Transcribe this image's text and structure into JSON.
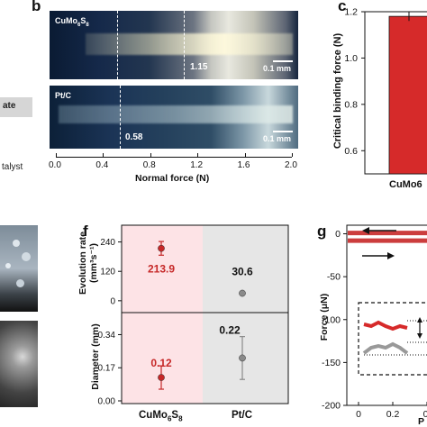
{
  "panels": {
    "b": {
      "letter": "b"
    },
    "c": {
      "letter": "c"
    },
    "f": {
      "letter": "f"
    },
    "g": {
      "letter": "g"
    }
  },
  "left_fragments": {
    "line1": "ate",
    "line2": "talyst"
  },
  "micrograph_top": {
    "label_main": "CuMo",
    "label_sub1": "6",
    "label_mid": "S",
    "label_sub2": "8",
    "value": "1.15",
    "scale": "0.1 mm"
  },
  "micrograph_bottom": {
    "label": "Pt/C",
    "value": "0.58",
    "scale": "0.1 mm"
  },
  "chart_data": [
    {
      "type": "table",
      "panel": "b",
      "xlabel": "Normal force (N)",
      "xlim": [
        0.0,
        2.0
      ],
      "xticks": [
        "0.0",
        "0.4",
        "0.8",
        "1.2",
        "1.6",
        "2.0"
      ],
      "markers": [
        {
          "sample": "CuMo6S8",
          "critical_force": 1.15
        },
        {
          "sample": "Pt/C",
          "critical_force": 0.58
        }
      ]
    },
    {
      "type": "bar",
      "panel": "c",
      "ylabel": "Critical binding force (N)",
      "ylim": [
        0.5,
        1.2
      ],
      "yticks": [
        "0.6",
        "0.8",
        "1.0",
        "1.2"
      ],
      "categories": [
        "CuMo6"
      ],
      "values": [
        1.18
      ],
      "error": [
        0.02
      ],
      "bar_color": "#d62a2a"
    },
    {
      "type": "scatter",
      "panel": "f",
      "categories": [
        "CuMo6S8",
        "Pt/C"
      ],
      "xlabel_main": "CuMo",
      "xlabel_sub1": "6",
      "xlabel_mid": "S",
      "xlabel_sub2": "8",
      "xlabel_right": "Pt/C",
      "top": {
        "ylabel_line1": "Evolution rate",
        "ylabel_line2": "(mm³s⁻¹)",
        "ylim": [
          -30,
          290
        ],
        "yticks": [
          "0",
          "120",
          "240"
        ],
        "values": [
          213.9,
          30.6
        ],
        "errors": [
          28,
          4
        ],
        "labels": [
          "213.9",
          "30.6"
        ]
      },
      "bottom": {
        "ylabel": "Diameter (mm)",
        "ylim": [
          0.0,
          0.43
        ],
        "yticks": [
          "0.00",
          "0.17",
          "0.34"
        ],
        "values": [
          0.12,
          0.22
        ],
        "errors": [
          0.06,
          0.11
        ],
        "labels": [
          "0.12",
          "0.22"
        ]
      },
      "colors": {
        "cumo": "#c62828",
        "ptc": "#8a8a8a",
        "cumo_bg": "#fde3e6",
        "ptc_bg": "#e6e6e6"
      }
    },
    {
      "type": "line",
      "panel": "g",
      "ylabel": "Force (μN)",
      "xlabel": "P",
      "ylim": [
        -200,
        10
      ],
      "yticks": [
        "0",
        "-50",
        "-100",
        "-150",
        "-200"
      ],
      "xticks": [
        "0",
        "0.2",
        "0."
      ],
      "series": [
        {
          "values": [
            1,
            1,
            1,
            1
          ]
        },
        {
          "values": [
            -8,
            -8,
            -8,
            -8
          ]
        }
      ]
    }
  ]
}
